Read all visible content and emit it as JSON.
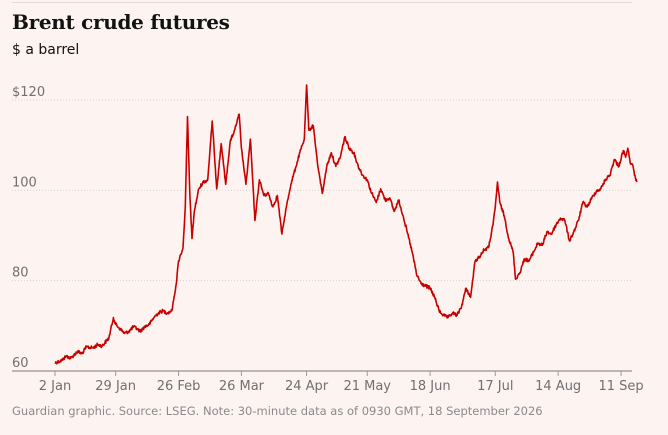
{
  "header": {
    "title": "Brent crude futures",
    "subtitle": "$ a barrel"
  },
  "footer": {
    "note": "Guardian graphic. Source: LSEG. Note: 30-minute data as of 0930 GMT, 18 September 2026"
  },
  "colors": {
    "series": "#c70000",
    "background": "#fdf4f2"
  },
  "chart_data": {
    "type": "line",
    "title": "Brent crude futures",
    "ylabel": "$ a barrel",
    "ylim": [
      60,
      120
    ],
    "yticks": [
      {
        "value": 120,
        "label": "$120"
      },
      {
        "value": 100,
        "label": "100"
      },
      {
        "value": 80,
        "label": "80"
      },
      {
        "value": 60,
        "label": "60"
      }
    ],
    "xlim": [
      "2026-01-02",
      "2026-09-18"
    ],
    "xticks": [
      {
        "date": "2026-01-02",
        "label": "2 Jan"
      },
      {
        "date": "2026-01-29",
        "label": "29 Jan"
      },
      {
        "date": "2026-02-26",
        "label": "26 Feb"
      },
      {
        "date": "2026-03-26",
        "label": "26 Mar"
      },
      {
        "date": "2026-04-24",
        "label": "24 Apr"
      },
      {
        "date": "2026-05-21",
        "label": "21 May"
      },
      {
        "date": "2026-06-18",
        "label": "18 Jun"
      },
      {
        "date": "2026-07-17",
        "label": "17 Jul"
      },
      {
        "date": "2026-08-14",
        "label": "14 Aug"
      },
      {
        "date": "2026-09-11",
        "label": "11 Sep"
      }
    ],
    "grid": true,
    "series": [
      {
        "points": [
          [
            "2026-01-02",
            60.5
          ],
          [
            "2026-01-05",
            61.0
          ],
          [
            "2026-01-07",
            62.0
          ],
          [
            "2026-01-09",
            61.5
          ],
          [
            "2026-01-12",
            63.0
          ],
          [
            "2026-01-14",
            62.5
          ],
          [
            "2026-01-16",
            64.0
          ],
          [
            "2026-01-19",
            63.8
          ],
          [
            "2026-01-21",
            64.5
          ],
          [
            "2026-01-23",
            64.2
          ],
          [
            "2026-01-26",
            66.0
          ],
          [
            "2026-01-28",
            70.5
          ],
          [
            "2026-01-29",
            69.0
          ],
          [
            "2026-01-31",
            68.0
          ],
          [
            "2026-02-02",
            67.0
          ],
          [
            "2026-02-04",
            67.5
          ],
          [
            "2026-02-06",
            68.5
          ],
          [
            "2026-02-09",
            67.5
          ],
          [
            "2026-02-11",
            68.5
          ],
          [
            "2026-02-13",
            69.0
          ],
          [
            "2026-02-15",
            70.5
          ],
          [
            "2026-02-17",
            71.5
          ],
          [
            "2026-02-19",
            72.0
          ],
          [
            "2026-02-21",
            71.5
          ],
          [
            "2026-02-23",
            72.0
          ],
          [
            "2026-02-25",
            78.0
          ],
          [
            "2026-02-26",
            83.0
          ],
          [
            "2026-02-27",
            84.5
          ],
          [
            "2026-02-28",
            86.0
          ],
          [
            "2026-03-01",
            95.0
          ],
          [
            "2026-03-02",
            115.0
          ],
          [
            "2026-03-03",
            98.0
          ],
          [
            "2026-03-04",
            88.0
          ],
          [
            "2026-03-05",
            94.0
          ],
          [
            "2026-03-07",
            99.0
          ],
          [
            "2026-03-09",
            100.5
          ],
          [
            "2026-03-11",
            101.0
          ],
          [
            "2026-03-13",
            114.0
          ],
          [
            "2026-03-15",
            99.0
          ],
          [
            "2026-03-17",
            109.0
          ],
          [
            "2026-03-19",
            100.0
          ],
          [
            "2026-03-21",
            109.5
          ],
          [
            "2026-03-23",
            112.0
          ],
          [
            "2026-03-25",
            115.5
          ],
          [
            "2026-03-26",
            108.0
          ],
          [
            "2026-03-28",
            100.0
          ],
          [
            "2026-03-30",
            110.0
          ],
          [
            "2026-04-01",
            92.0
          ],
          [
            "2026-04-03",
            101.0
          ],
          [
            "2026-04-05",
            97.5
          ],
          [
            "2026-04-07",
            98.0
          ],
          [
            "2026-04-09",
            95.0
          ],
          [
            "2026-04-11",
            97.5
          ],
          [
            "2026-04-13",
            89.0
          ],
          [
            "2026-04-15",
            95.0
          ],
          [
            "2026-04-17",
            100.0
          ],
          [
            "2026-04-19",
            103.5
          ],
          [
            "2026-04-21",
            107.0
          ],
          [
            "2026-04-23",
            110.0
          ],
          [
            "2026-04-24",
            122.0
          ],
          [
            "2026-04-25",
            112.0
          ],
          [
            "2026-04-27",
            113.0
          ],
          [
            "2026-04-29",
            104.0
          ],
          [
            "2026-05-01",
            98.0
          ],
          [
            "2026-05-03",
            104.0
          ],
          [
            "2026-05-05",
            107.0
          ],
          [
            "2026-05-07",
            104.0
          ],
          [
            "2026-05-09",
            106.0
          ],
          [
            "2026-05-11",
            110.5
          ],
          [
            "2026-05-13",
            108.0
          ],
          [
            "2026-05-15",
            107.0
          ],
          [
            "2026-05-17",
            104.0
          ],
          [
            "2026-05-19",
            102.0
          ],
          [
            "2026-05-21",
            101.0
          ],
          [
            "2026-05-23",
            98.0
          ],
          [
            "2026-05-25",
            96.0
          ],
          [
            "2026-05-27",
            99.0
          ],
          [
            "2026-05-29",
            96.5
          ],
          [
            "2026-05-31",
            97.0
          ],
          [
            "2026-06-02",
            94.0
          ],
          [
            "2026-06-04",
            96.5
          ],
          [
            "2026-06-06",
            93.0
          ],
          [
            "2026-06-08",
            89.0
          ],
          [
            "2026-06-10",
            85.0
          ],
          [
            "2026-06-12",
            80.0
          ],
          [
            "2026-06-14",
            78.0
          ],
          [
            "2026-06-16",
            77.5
          ],
          [
            "2026-06-18",
            77.0
          ],
          [
            "2026-06-20",
            75.0
          ],
          [
            "2026-06-22",
            72.0
          ],
          [
            "2026-06-24",
            71.0
          ],
          [
            "2026-06-26",
            70.5
          ],
          [
            "2026-06-28",
            71.5
          ],
          [
            "2026-06-30",
            71.0
          ],
          [
            "2026-07-02",
            73.0
          ],
          [
            "2026-07-04",
            77.0
          ],
          [
            "2026-07-06",
            75.0
          ],
          [
            "2026-07-08",
            83.0
          ],
          [
            "2026-07-10",
            84.0
          ],
          [
            "2026-07-12",
            85.5
          ],
          [
            "2026-07-14",
            86.0
          ],
          [
            "2026-07-16",
            91.0
          ],
          [
            "2026-07-17",
            95.0
          ],
          [
            "2026-07-18",
            100.5
          ],
          [
            "2026-07-19",
            96.0
          ],
          [
            "2026-07-21",
            93.0
          ],
          [
            "2026-07-23",
            88.0
          ],
          [
            "2026-07-25",
            85.0
          ],
          [
            "2026-07-26",
            79.0
          ],
          [
            "2026-07-28",
            80.5
          ],
          [
            "2026-07-30",
            83.5
          ],
          [
            "2026-08-01",
            83.0
          ],
          [
            "2026-08-03",
            85.0
          ],
          [
            "2026-08-05",
            87.0
          ],
          [
            "2026-08-07",
            86.5
          ],
          [
            "2026-08-09",
            89.5
          ],
          [
            "2026-08-11",
            89.0
          ],
          [
            "2026-08-13",
            91.0
          ],
          [
            "2026-08-15",
            92.5
          ],
          [
            "2026-08-17",
            92.0
          ],
          [
            "2026-08-19",
            87.5
          ],
          [
            "2026-08-21",
            89.5
          ],
          [
            "2026-08-23",
            92.0
          ],
          [
            "2026-08-25",
            96.0
          ],
          [
            "2026-08-27",
            95.0
          ],
          [
            "2026-08-29",
            97.0
          ],
          [
            "2026-08-31",
            98.5
          ],
          [
            "2026-09-02",
            99.0
          ],
          [
            "2026-09-04",
            101.0
          ],
          [
            "2026-09-06",
            102.0
          ],
          [
            "2026-09-08",
            105.5
          ],
          [
            "2026-09-10",
            104.0
          ],
          [
            "2026-09-12",
            107.5
          ],
          [
            "2026-09-13",
            106.0
          ],
          [
            "2026-09-14",
            108.0
          ],
          [
            "2026-09-15",
            105.0
          ],
          [
            "2026-09-16",
            104.5
          ],
          [
            "2026-09-17",
            102.0
          ],
          [
            "2026-09-18",
            100.5
          ]
        ]
      }
    ]
  }
}
